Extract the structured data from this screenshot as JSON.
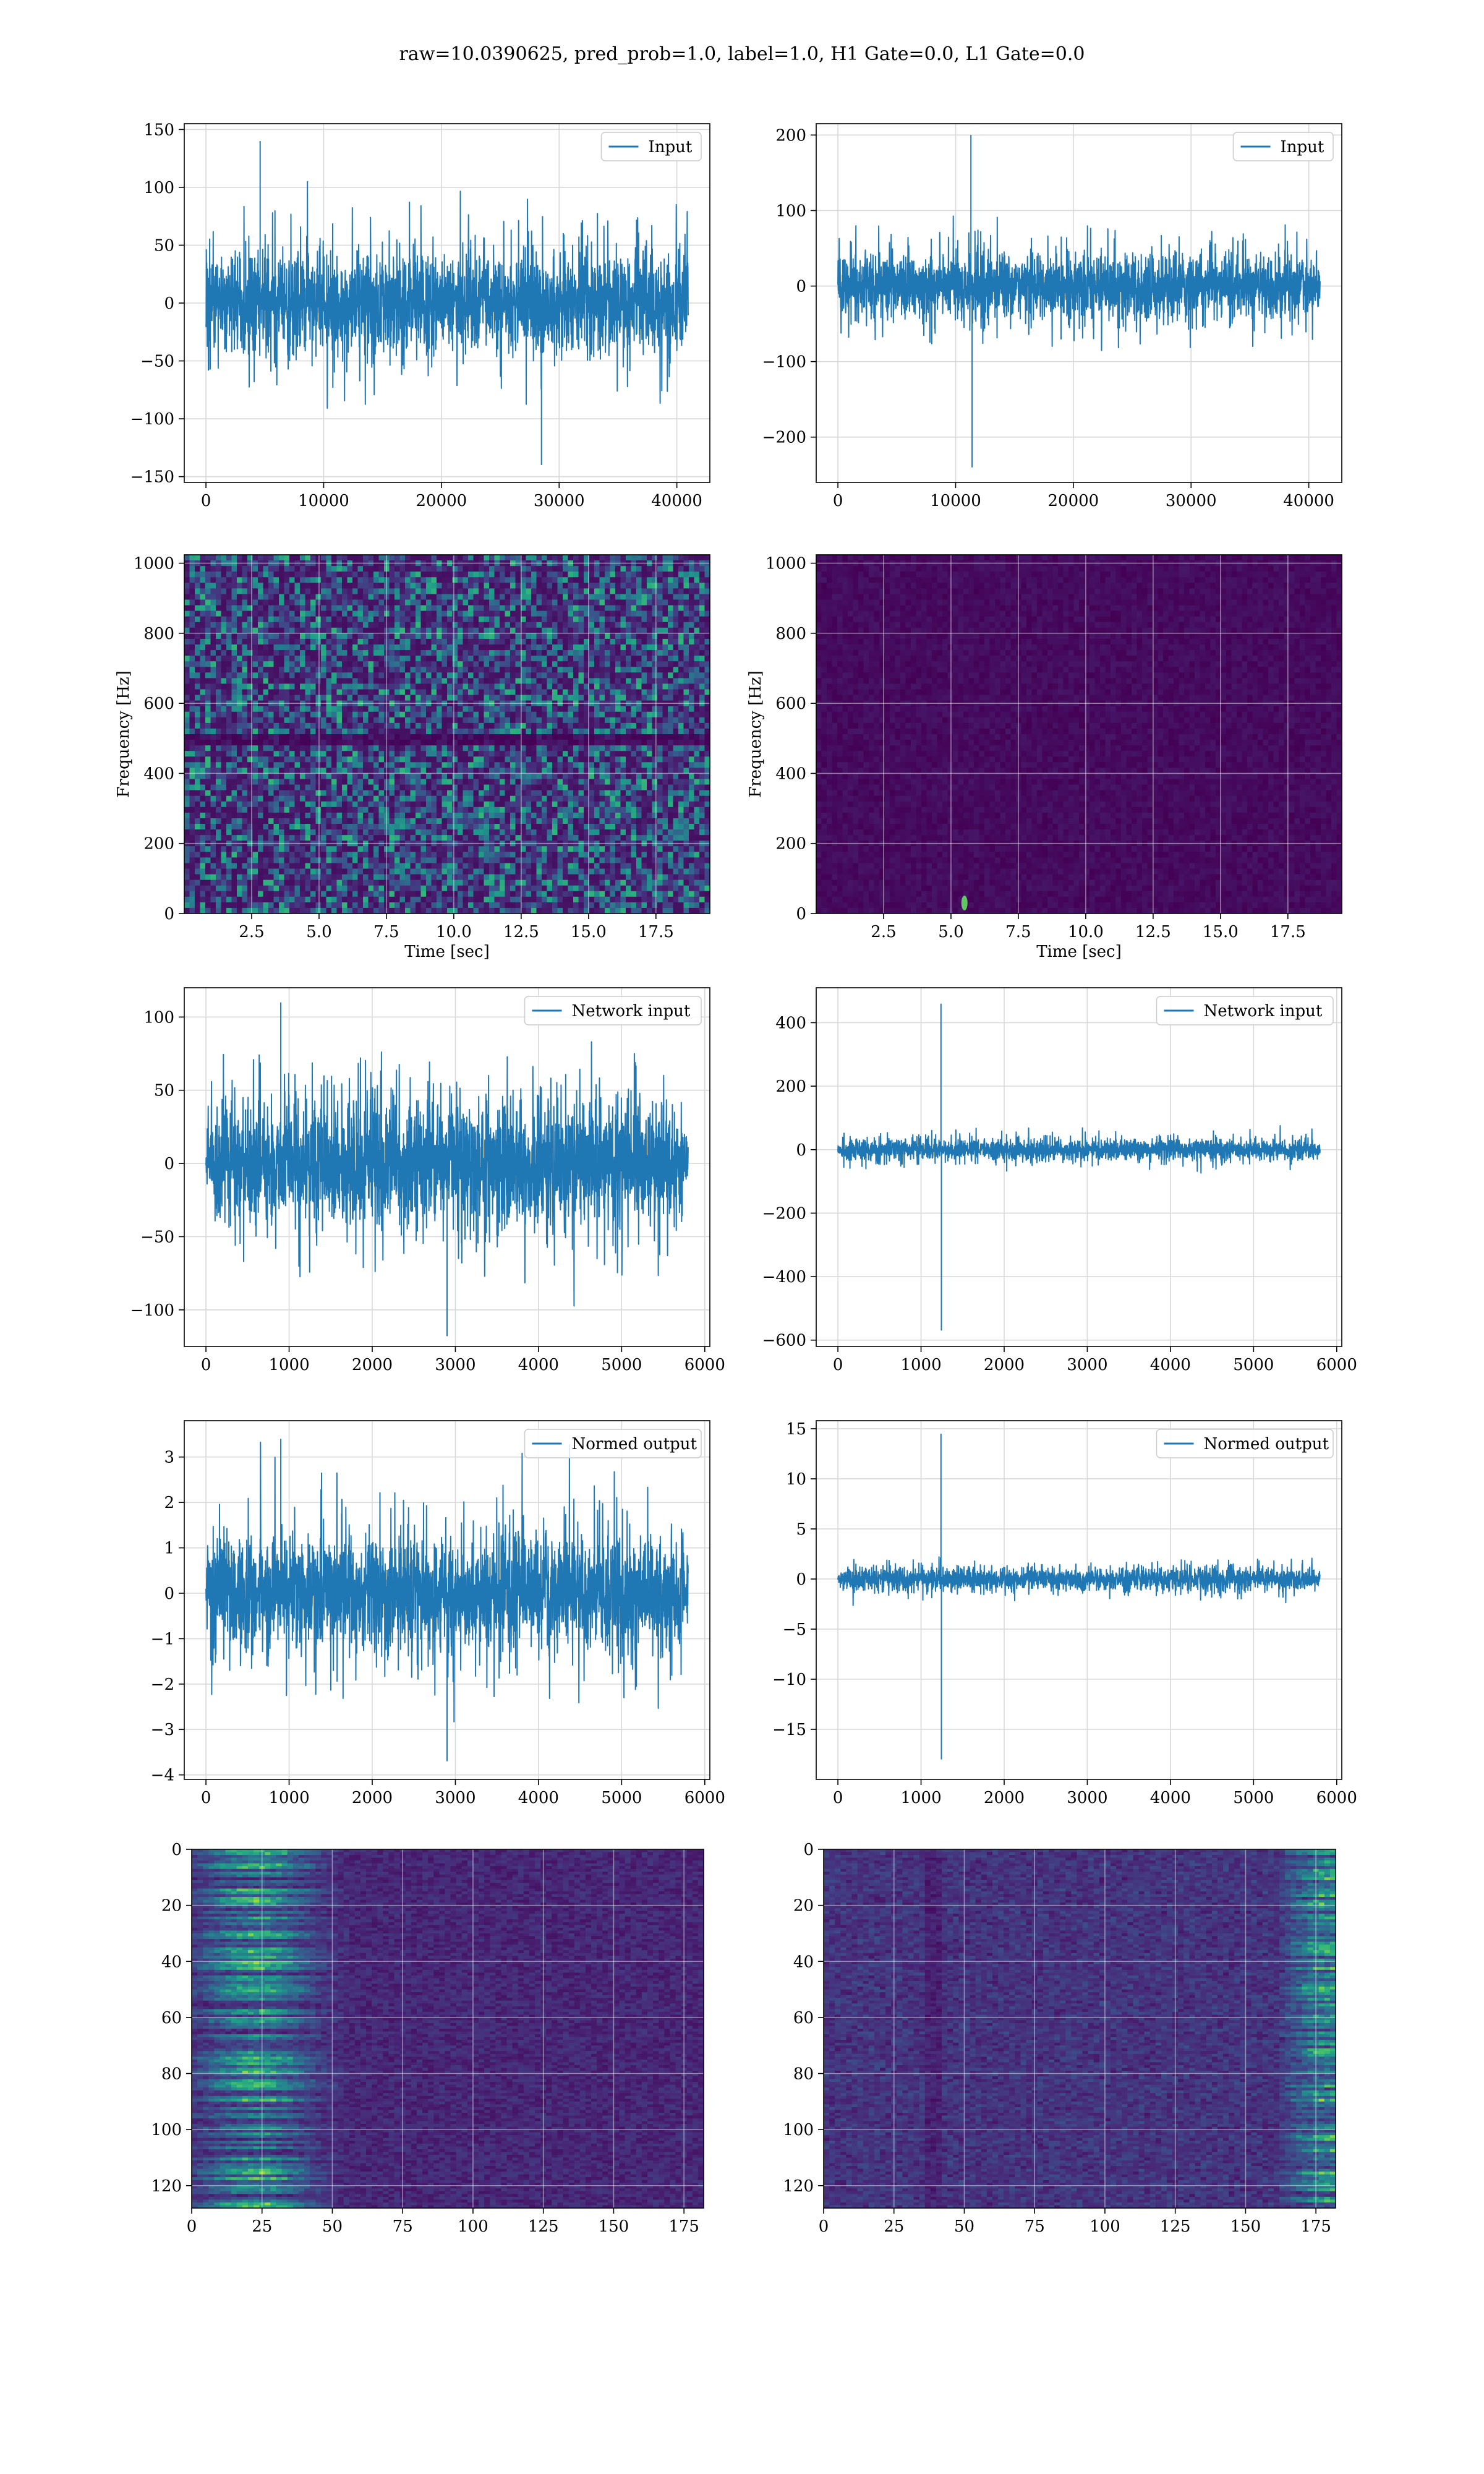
{
  "figure": {
    "suptitle": "raw=10.0390625, pred_prob=1.0, label=1.0, H1 Gate=0.0, L1 Gate=0.0"
  },
  "colors": {
    "line": "#1f77b4",
    "viridis_dark": "#440154",
    "viridis_blue": "#3b528b",
    "viridis_teal": "#21918c",
    "viridis_green": "#5ec962",
    "viridis_yellow": "#fde725",
    "grid": "#d9d9d9"
  },
  "chart_data": [
    {
      "id": "input-h1",
      "type": "line",
      "series": [
        {
          "name": "Input"
        }
      ],
      "x_range": [
        0,
        40960
      ],
      "ylim": [
        -155,
        155
      ],
      "xticks": [
        0,
        10000,
        20000,
        30000,
        40000
      ],
      "yticks": [
        -150,
        -100,
        -50,
        0,
        50,
        100,
        150
      ],
      "legend": "top-right",
      "grid": true,
      "xlabel": "",
      "ylabel": "",
      "signal": {
        "noise_amplitude": 95,
        "spikes": [
          {
            "x": 4600,
            "y": 140
          },
          {
            "x": 28500,
            "y": -140
          }
        ]
      }
    },
    {
      "id": "input-l1",
      "type": "line",
      "series": [
        {
          "name": "Input"
        }
      ],
      "x_range": [
        0,
        40960
      ],
      "ylim": [
        -260,
        215
      ],
      "xticks": [
        0,
        10000,
        20000,
        30000,
        40000
      ],
      "yticks": [
        -200,
        -100,
        0,
        100,
        200
      ],
      "legend": "top-right",
      "grid": true,
      "xlabel": "",
      "ylabel": "",
      "signal": {
        "noise_amplitude": 95,
        "spikes": [
          {
            "x": 11300,
            "y": 200
          },
          {
            "x": 11400,
            "y": -240
          }
        ]
      }
    },
    {
      "id": "spectrogram-h1",
      "type": "heatmap",
      "xlim": [
        0,
        19.5
      ],
      "ylim": [
        0,
        1024
      ],
      "xticks": [
        2.5,
        5.0,
        7.5,
        10.0,
        12.5,
        15.0,
        17.5
      ],
      "yticks": [
        0,
        200,
        400,
        600,
        800,
        1000
      ],
      "xlabel": "Time [sec]",
      "ylabel": "Frequency [Hz]",
      "grid": true,
      "colormap": "viridis",
      "features": {
        "dark_band_hz": 500,
        "texture": "speckled noise"
      }
    },
    {
      "id": "spectrogram-l1",
      "type": "heatmap",
      "xlim": [
        0,
        19.5
      ],
      "ylim": [
        0,
        1024
      ],
      "xticks": [
        2.5,
        5.0,
        7.5,
        10.0,
        12.5,
        15.0,
        17.5
      ],
      "yticks": [
        0,
        200,
        400,
        600,
        800,
        1000
      ],
      "xlabel": "Time [sec]",
      "ylabel": "Frequency [Hz]",
      "grid": true,
      "colormap": "viridis",
      "features": {
        "hot_spot": {
          "time": 5.5,
          "freq": 30
        },
        "texture": "mostly dark"
      }
    },
    {
      "id": "network-input-h1",
      "type": "line",
      "series": [
        {
          "name": "Network input"
        }
      ],
      "x_range": [
        0,
        5800
      ],
      "ylim": [
        -125,
        120
      ],
      "xticks": [
        0,
        1000,
        2000,
        3000,
        4000,
        5000,
        6000
      ],
      "yticks": [
        -100,
        -50,
        0,
        50,
        100
      ],
      "legend": "top-right",
      "grid": true,
      "xlabel": "",
      "ylabel": "",
      "signal": {
        "noise_amplitude": 95,
        "spikes": [
          {
            "x": 2900,
            "y": -118
          },
          {
            "x": 900,
            "y": 110
          }
        ]
      }
    },
    {
      "id": "network-input-l1",
      "type": "line",
      "series": [
        {
          "name": "Network input"
        }
      ],
      "x_range": [
        0,
        5800
      ],
      "ylim": [
        -620,
        510
      ],
      "xticks": [
        0,
        1000,
        2000,
        3000,
        4000,
        5000,
        6000
      ],
      "yticks": [
        -600,
        -400,
        -200,
        0,
        200,
        400
      ],
      "legend": "top-right",
      "grid": true,
      "xlabel": "",
      "ylabel": "",
      "signal": {
        "noise_amplitude": 75,
        "spikes": [
          {
            "x": 1240,
            "y": 460
          },
          {
            "x": 1245,
            "y": -570
          }
        ]
      }
    },
    {
      "id": "normed-output-h1",
      "type": "line",
      "series": [
        {
          "name": "Normed output"
        }
      ],
      "x_range": [
        0,
        5800
      ],
      "ylim": [
        -4.1,
        3.8
      ],
      "xticks": [
        0,
        1000,
        2000,
        3000,
        4000,
        5000,
        6000
      ],
      "yticks": [
        -4,
        -3,
        -2,
        -1,
        0,
        1,
        2,
        3
      ],
      "legend": "top-right",
      "grid": true,
      "xlabel": "",
      "ylabel": "",
      "signal": {
        "noise_amplitude": 2.9,
        "spikes": [
          {
            "x": 2900,
            "y": -3.7
          },
          {
            "x": 900,
            "y": 3.4
          }
        ]
      }
    },
    {
      "id": "normed-output-l1",
      "type": "line",
      "series": [
        {
          "name": "Normed output"
        }
      ],
      "x_range": [
        0,
        5800
      ],
      "ylim": [
        -20,
        15.8
      ],
      "xticks": [
        0,
        1000,
        2000,
        3000,
        4000,
        5000,
        6000
      ],
      "yticks": [
        -15,
        -10,
        -5,
        0,
        5,
        10,
        15
      ],
      "legend": "top-right",
      "grid": true,
      "xlabel": "",
      "ylabel": "",
      "signal": {
        "noise_amplitude": 2.5,
        "spikes": [
          {
            "x": 1240,
            "y": 14.5
          },
          {
            "x": 1245,
            "y": -18
          }
        ]
      }
    },
    {
      "id": "features-h1",
      "type": "heatmap",
      "xlim": [
        0,
        182
      ],
      "ylim": [
        128,
        0
      ],
      "xticks": [
        0,
        25,
        50,
        75,
        100,
        125,
        150,
        175
      ],
      "yticks": [
        0,
        20,
        40,
        60,
        80,
        100,
        120
      ],
      "xlabel": "",
      "ylabel": "",
      "grid": true,
      "colormap": "viridis",
      "features": {
        "bright_region_x": [
          0,
          55
        ],
        "texture": "horizontal streaks"
      }
    },
    {
      "id": "features-l1",
      "type": "heatmap",
      "xlim": [
        0,
        182
      ],
      "ylim": [
        128,
        0
      ],
      "xticks": [
        0,
        25,
        50,
        75,
        100,
        125,
        150,
        175
      ],
      "yticks": [
        0,
        20,
        40,
        60,
        80,
        100,
        120
      ],
      "xlabel": "",
      "ylabel": "",
      "grid": true,
      "colormap": "viridis",
      "features": {
        "bright_region_x": [
          165,
          182
        ],
        "dark_band_x": 38,
        "texture": "horizontal streaks"
      }
    }
  ]
}
